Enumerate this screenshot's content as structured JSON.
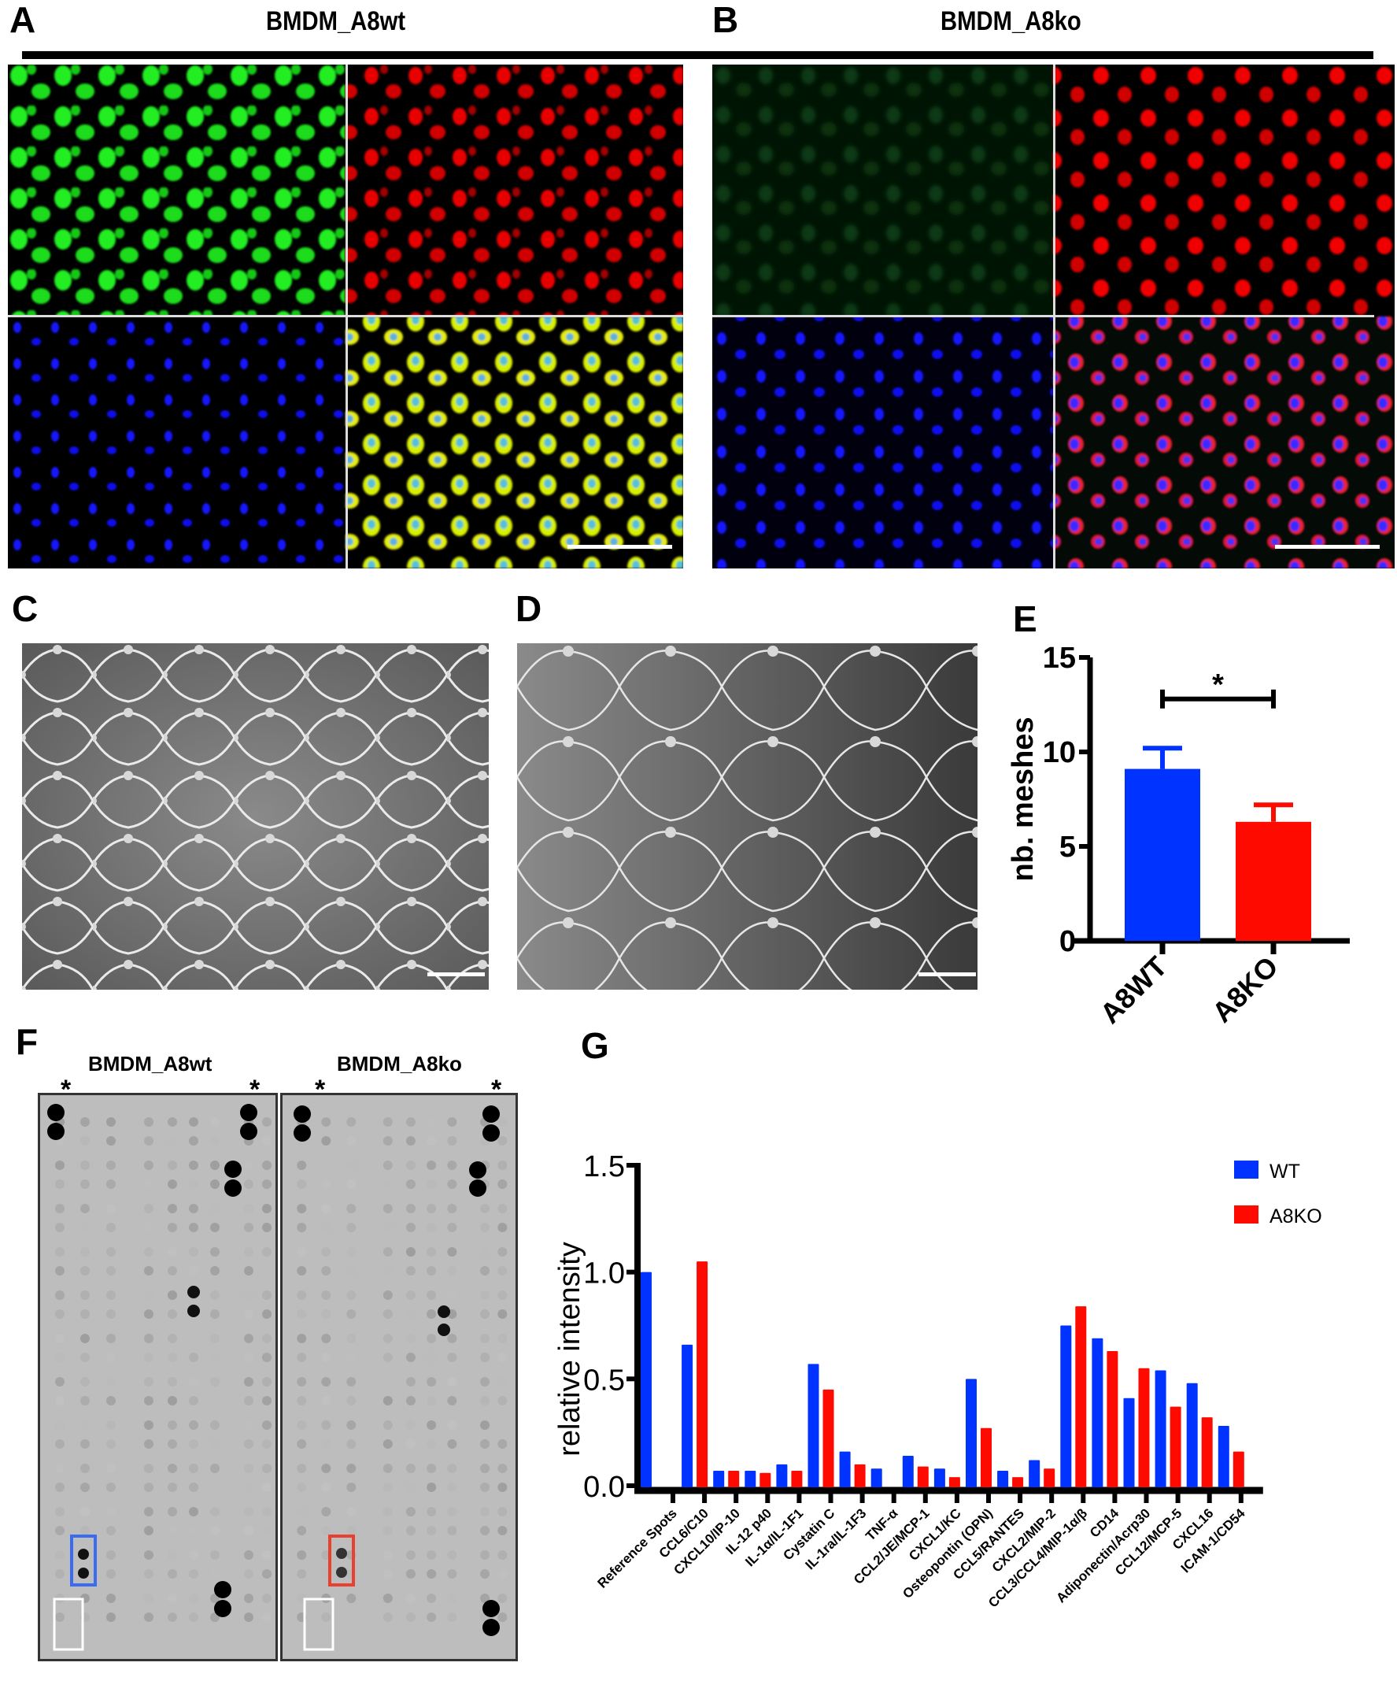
{
  "figure": {
    "panel_labels": [
      "A",
      "B",
      "C",
      "D",
      "E",
      "F",
      "G"
    ],
    "panel_A": {
      "letter": "A",
      "title": "BMDM_A8wt",
      "channels": [
        "green",
        "red",
        "blue",
        "merge"
      ],
      "scale_bar": true
    },
    "panel_B": {
      "letter": "B",
      "title": "BMDM_A8ko",
      "channels": [
        "green",
        "red",
        "blue",
        "merge"
      ],
      "scale_bar": true
    },
    "panel_C": {
      "letter": "C",
      "description": "tube formation brightfield",
      "scale_bar": true
    },
    "panel_D": {
      "letter": "D",
      "description": "tube formation brightfield",
      "scale_bar": true
    },
    "panel_E": {
      "letter": "E"
    },
    "panel_F": {
      "letter": "F",
      "left_title": "BMDM_A8wt",
      "right_title": "BMDM_A8ko",
      "marker": "*",
      "highlight_colors": {
        "wt_box": "#3b6cf0",
        "ko_box": "#e8412f",
        "neg_box": "#ffffff"
      }
    },
    "panel_G": {
      "letter": "G"
    }
  },
  "colors": {
    "wt": "#0033ff",
    "ko": "#ff0a00",
    "axis": "#000000"
  },
  "chart_data": [
    {
      "id": "E",
      "type": "bar",
      "title": "",
      "xlabel": "",
      "ylabel": "nb. meshes",
      "categories": [
        "A8WT",
        "A8KO"
      ],
      "values": [
        9.1,
        6.3
      ],
      "error_up": [
        1.1,
        0.9
      ],
      "colors": [
        "#0033ff",
        "#ff0a00"
      ],
      "ylim": [
        0,
        15
      ],
      "yticks": [
        "0",
        "5",
        "10",
        "15"
      ],
      "significance": {
        "from": "A8WT",
        "to": "A8KO",
        "label": "*",
        "y": 12.8
      },
      "grid": false
    },
    {
      "id": "G",
      "type": "bar",
      "title": "",
      "xlabel": "",
      "ylabel": "relative intensity",
      "ylim": [
        0,
        1.5
      ],
      "yticks": [
        "0.0",
        "0.5",
        "1.0",
        "1.5"
      ],
      "legend": {
        "position": "top-right",
        "entries": [
          "WT",
          "A8KO"
        ]
      },
      "grid": false,
      "categories": [
        "Reference Spots",
        "CCL6/C10",
        "CXCL10/IP-10",
        "IL-12 p40",
        "IL-1α/IL-1F1",
        "Cystatin C",
        "IL-1ra/IL-1F3",
        "TNF-α",
        "CCL2/JE/MCP-1",
        "CXCL1/KC",
        "Osteopontin (OPN)",
        "CCL5/RANTES",
        "CXCL2/MIP-2",
        "CCL3/CCL4/MIP-1α/β",
        "CD14",
        "Adiponectin/Acrp30",
        "CCL12/MCP-5",
        "CXCL16",
        "ICAM-1/CD54"
      ],
      "series": [
        {
          "name": "WT",
          "color": "#0033ff",
          "values": [
            1.0,
            0.66,
            0.07,
            0.07,
            0.1,
            0.57,
            0.16,
            0.08,
            0.14,
            0.08,
            0.5,
            0.07,
            0.12,
            0.75,
            0.69,
            0.41,
            0.54,
            0.48,
            0.28
          ]
        },
        {
          "name": "A8KO",
          "color": "#ff0a00",
          "values": [
            null,
            1.05,
            0.07,
            0.06,
            0.07,
            0.45,
            0.1,
            null,
            0.09,
            0.04,
            0.27,
            0.04,
            0.08,
            0.84,
            0.63,
            0.55,
            0.37,
            0.32,
            0.16
          ]
        }
      ]
    }
  ]
}
